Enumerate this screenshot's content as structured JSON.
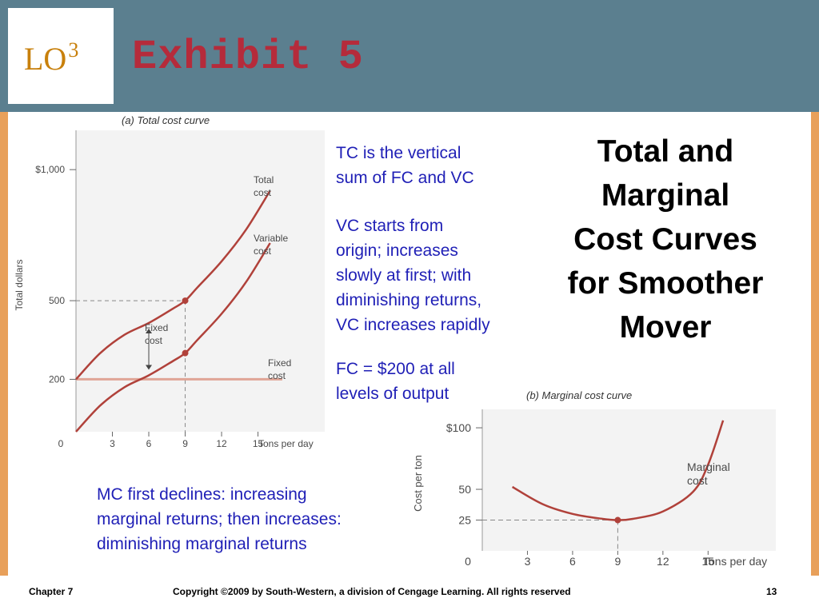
{
  "header": {
    "lo_label": "LO",
    "lo_sup": "3",
    "exhibit": "Exhibit 5"
  },
  "title": [
    "Total and",
    "Marginal",
    "Cost Curves",
    "for Smoother",
    "Mover"
  ],
  "notes": {
    "tc": [
      "TC is the vertical",
      "sum of FC and VC"
    ],
    "vc": [
      "VC starts from",
      "origin; increases",
      "slowly at first; with",
      "diminishing returns,",
      "VC increases rapidly"
    ],
    "fc": [
      "FC = $200 at all",
      "levels of output"
    ],
    "mc": [
      "MC first declines: increasing",
      "marginal returns; then increases:",
      "diminishing marginal returns"
    ]
  },
  "footer": {
    "chapter": "Chapter 7",
    "copyright": "Copyright ©2009 by South-Western, a division of Cengage Learning.  All rights reserved",
    "page": "13"
  },
  "colors": {
    "curve": "#b0413a",
    "fixed_line": "#e0a596",
    "body_text": "#1f1fb6",
    "exhibit": "#b52b3b",
    "header": "#5b7f8f",
    "frame": "#e8a05a"
  },
  "chart_data": [
    {
      "type": "line",
      "panel_prefix": "(a)",
      "title": "Total cost curve",
      "ylabel": "Total dollars",
      "xlabel": "Tons per day",
      "xlim": [
        0,
        20.5
      ],
      "ylim": [
        0,
        1150
      ],
      "x_ticks": [
        0,
        3,
        6,
        9,
        12,
        15
      ],
      "x_tick_labels": [
        "0",
        "3",
        "6",
        "9",
        "12",
        "15"
      ],
      "y_ticks": [
        200,
        500,
        1000
      ],
      "y_tick_labels": [
        "200",
        "500",
        "$1,000"
      ],
      "series": [
        {
          "name": "Total cost",
          "label_lines": [
            "Total",
            "cost"
          ],
          "x": [
            0,
            2,
            4,
            6,
            8,
            9,
            10,
            12,
            14,
            16
          ],
          "y": [
            200,
            300,
            370,
            415,
            470,
            500,
            550,
            650,
            770,
            920
          ]
        },
        {
          "name": "Variable cost",
          "label_lines": [
            "Variable",
            "cost"
          ],
          "x": [
            0,
            2,
            4,
            6,
            8,
            9,
            10,
            12,
            14,
            16
          ],
          "y": [
            0,
            100,
            170,
            215,
            270,
            300,
            350,
            450,
            570,
            720
          ]
        },
        {
          "name": "Fixed cost",
          "label_lines": [
            "Fixed",
            "cost"
          ],
          "x": [
            0,
            17
          ],
          "y": [
            200,
            200
          ]
        }
      ],
      "annotation": {
        "label_lines": [
          "Fixed",
          "cost"
        ],
        "x": 6,
        "y_from": 215,
        "y_to": 415
      },
      "markers": [
        {
          "x": 9,
          "y": 500
        },
        {
          "x": 9,
          "y": 300
        }
      ]
    },
    {
      "type": "line",
      "panel_prefix": "(b)",
      "title": "Marginal cost curve",
      "ylabel": "Cost per ton",
      "xlabel": "Tons per day",
      "xlim": [
        0,
        19.5
      ],
      "ylim": [
        0,
        115
      ],
      "x_ticks": [
        0,
        3,
        6,
        9,
        12,
        15
      ],
      "x_tick_labels": [
        "0",
        "3",
        "6",
        "9",
        "12",
        "15"
      ],
      "y_ticks": [
        25,
        50,
        100
      ],
      "y_tick_labels": [
        "25",
        "50",
        "$100"
      ],
      "series": [
        {
          "name": "Marginal cost",
          "label_lines": [
            "Marginal",
            "cost"
          ],
          "x": [
            2,
            4,
            6,
            8,
            9,
            10,
            12,
            14,
            15,
            16
          ],
          "y": [
            52,
            38,
            30,
            26,
            25,
            26,
            32,
            48,
            70,
            106
          ]
        }
      ],
      "markers": [
        {
          "x": 9,
          "y": 25
        }
      ]
    }
  ]
}
